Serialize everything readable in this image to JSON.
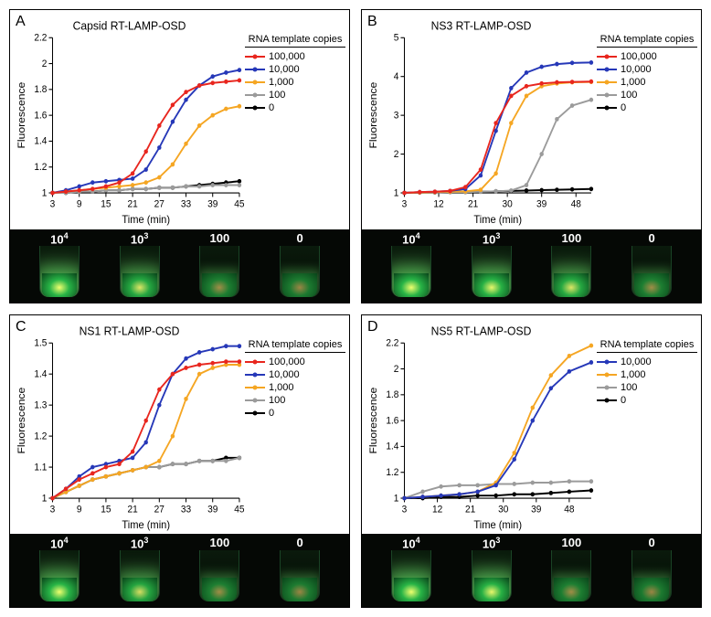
{
  "series_colors": {
    "100000": "#e8261e",
    "10000": "#2638b8",
    "1000": "#f5a623",
    "100": "#9b9b9b",
    "0": "#000000"
  },
  "legend_title": "RNA template copies",
  "legend_items": [
    {
      "key": "100000",
      "label": "100,000"
    },
    {
      "key": "10000",
      "label": "10,000"
    },
    {
      "key": "1000",
      "label": "1,000"
    },
    {
      "key": "100",
      "label": "100"
    },
    {
      "key": "0",
      "label": "0"
    }
  ],
  "tube_labels": [
    "10^4",
    "10^3",
    "100",
    "0"
  ],
  "panels": [
    {
      "letter": "A",
      "title": "Capsid RT-LAMP-OSD",
      "xlabel": "Time (min)",
      "ylabel": "Fluorescence",
      "xticks": [
        3,
        9,
        15,
        21,
        27,
        33,
        39,
        45
      ],
      "yticks": [
        1,
        1.2,
        1.4,
        1.6,
        1.8,
        2,
        2.2
      ],
      "xlim": [
        3,
        45
      ],
      "ylim": [
        1,
        2.2
      ],
      "series": {
        "100000": [
          [
            3,
            1.0
          ],
          [
            6,
            1.01
          ],
          [
            9,
            1.02
          ],
          [
            12,
            1.03
          ],
          [
            15,
            1.05
          ],
          [
            18,
            1.08
          ],
          [
            21,
            1.15
          ],
          [
            24,
            1.32
          ],
          [
            27,
            1.52
          ],
          [
            30,
            1.68
          ],
          [
            33,
            1.78
          ],
          [
            36,
            1.83
          ],
          [
            39,
            1.85
          ],
          [
            42,
            1.86
          ],
          [
            45,
            1.87
          ]
        ],
        "10000": [
          [
            3,
            1.0
          ],
          [
            6,
            1.02
          ],
          [
            9,
            1.05
          ],
          [
            12,
            1.08
          ],
          [
            15,
            1.09
          ],
          [
            18,
            1.1
          ],
          [
            21,
            1.11
          ],
          [
            24,
            1.18
          ],
          [
            27,
            1.35
          ],
          [
            30,
            1.55
          ],
          [
            33,
            1.72
          ],
          [
            36,
            1.83
          ],
          [
            39,
            1.9
          ],
          [
            42,
            1.93
          ],
          [
            45,
            1.95
          ]
        ],
        "1000": [
          [
            3,
            1.0
          ],
          [
            6,
            1.01
          ],
          [
            9,
            1.02
          ],
          [
            12,
            1.03
          ],
          [
            15,
            1.04
          ],
          [
            18,
            1.05
          ],
          [
            21,
            1.06
          ],
          [
            24,
            1.08
          ],
          [
            27,
            1.12
          ],
          [
            30,
            1.22
          ],
          [
            33,
            1.38
          ],
          [
            36,
            1.52
          ],
          [
            39,
            1.6
          ],
          [
            42,
            1.65
          ],
          [
            45,
            1.67
          ]
        ],
        "100": [
          [
            3,
            1.0
          ],
          [
            6,
            1.0
          ],
          [
            9,
            1.01
          ],
          [
            12,
            1.01
          ],
          [
            15,
            1.02
          ],
          [
            18,
            1.02
          ],
          [
            21,
            1.03
          ],
          [
            24,
            1.03
          ],
          [
            27,
            1.04
          ],
          [
            30,
            1.04
          ],
          [
            33,
            1.05
          ],
          [
            36,
            1.05
          ],
          [
            39,
            1.06
          ],
          [
            42,
            1.06
          ],
          [
            45,
            1.06
          ]
        ],
        "0": [
          [
            3,
            1.0
          ],
          [
            6,
            1.0
          ],
          [
            9,
            1.01
          ],
          [
            12,
            1.01
          ],
          [
            15,
            1.02
          ],
          [
            18,
            1.02
          ],
          [
            21,
            1.03
          ],
          [
            24,
            1.03
          ],
          [
            27,
            1.04
          ],
          [
            30,
            1.04
          ],
          [
            33,
            1.05
          ],
          [
            36,
            1.06
          ],
          [
            39,
            1.07
          ],
          [
            42,
            1.08
          ],
          [
            45,
            1.09
          ]
        ]
      },
      "tube_intensity": [
        1.0,
        0.85,
        0.35,
        0.3
      ]
    },
    {
      "letter": "B",
      "title": "NS3 RT-LAMP-OSD",
      "xlabel": "Time (min)",
      "ylabel": "Fluorescence",
      "xticks": [
        3,
        12,
        21,
        30,
        39,
        48
      ],
      "yticks": [
        1,
        2,
        3,
        4,
        5
      ],
      "xlim": [
        3,
        52
      ],
      "ylim": [
        1,
        5
      ],
      "series": {
        "100000": [
          [
            3,
            1.0
          ],
          [
            7,
            1.02
          ],
          [
            11,
            1.03
          ],
          [
            15,
            1.05
          ],
          [
            19,
            1.15
          ],
          [
            23,
            1.6
          ],
          [
            27,
            2.8
          ],
          [
            31,
            3.5
          ],
          [
            35,
            3.75
          ],
          [
            39,
            3.82
          ],
          [
            43,
            3.85
          ],
          [
            47,
            3.86
          ],
          [
            52,
            3.87
          ]
        ],
        "10000": [
          [
            3,
            1.0
          ],
          [
            7,
            1.02
          ],
          [
            11,
            1.03
          ],
          [
            15,
            1.05
          ],
          [
            19,
            1.1
          ],
          [
            23,
            1.45
          ],
          [
            27,
            2.6
          ],
          [
            31,
            3.7
          ],
          [
            35,
            4.1
          ],
          [
            39,
            4.25
          ],
          [
            43,
            4.32
          ],
          [
            47,
            4.35
          ],
          [
            52,
            4.36
          ]
        ],
        "1000": [
          [
            3,
            1.0
          ],
          [
            7,
            1.01
          ],
          [
            11,
            1.02
          ],
          [
            15,
            1.03
          ],
          [
            19,
            1.04
          ],
          [
            23,
            1.08
          ],
          [
            27,
            1.5
          ],
          [
            31,
            2.8
          ],
          [
            35,
            3.5
          ],
          [
            39,
            3.75
          ],
          [
            43,
            3.82
          ],
          [
            47,
            3.85
          ],
          [
            52,
            3.86
          ]
        ],
        "100": [
          [
            3,
            1.0
          ],
          [
            7,
            1.01
          ],
          [
            11,
            1.01
          ],
          [
            15,
            1.02
          ],
          [
            19,
            1.02
          ],
          [
            23,
            1.03
          ],
          [
            27,
            1.04
          ],
          [
            31,
            1.06
          ],
          [
            35,
            1.2
          ],
          [
            39,
            2.0
          ],
          [
            43,
            2.9
          ],
          [
            47,
            3.25
          ],
          [
            52,
            3.4
          ]
        ],
        "0": [
          [
            3,
            1.0
          ],
          [
            7,
            1.01
          ],
          [
            11,
            1.01
          ],
          [
            15,
            1.02
          ],
          [
            19,
            1.02
          ],
          [
            23,
            1.03
          ],
          [
            27,
            1.04
          ],
          [
            31,
            1.05
          ],
          [
            35,
            1.06
          ],
          [
            39,
            1.07
          ],
          [
            43,
            1.08
          ],
          [
            47,
            1.09
          ],
          [
            52,
            1.1
          ]
        ]
      },
      "tube_intensity": [
        1.0,
        0.95,
        0.85,
        0.35
      ]
    },
    {
      "letter": "C",
      "title": "NS1 RT-LAMP-OSD",
      "xlabel": "Time (min)",
      "ylabel": "Fluorescence",
      "xticks": [
        3,
        9,
        15,
        21,
        27,
        33,
        39,
        45
      ],
      "yticks": [
        1,
        1.1,
        1.2,
        1.3,
        1.4,
        1.5
      ],
      "xlim": [
        3,
        45
      ],
      "ylim": [
        1,
        1.5
      ],
      "series": {
        "100000": [
          [
            3,
            1.0
          ],
          [
            6,
            1.03
          ],
          [
            9,
            1.06
          ],
          [
            12,
            1.08
          ],
          [
            15,
            1.1
          ],
          [
            18,
            1.11
          ],
          [
            21,
            1.15
          ],
          [
            24,
            1.25
          ],
          [
            27,
            1.35
          ],
          [
            30,
            1.4
          ],
          [
            33,
            1.42
          ],
          [
            36,
            1.43
          ],
          [
            39,
            1.435
          ],
          [
            42,
            1.44
          ],
          [
            45,
            1.44
          ]
        ],
        "10000": [
          [
            3,
            1.0
          ],
          [
            6,
            1.03
          ],
          [
            9,
            1.07
          ],
          [
            12,
            1.1
          ],
          [
            15,
            1.11
          ],
          [
            18,
            1.12
          ],
          [
            21,
            1.13
          ],
          [
            24,
            1.18
          ],
          [
            27,
            1.3
          ],
          [
            30,
            1.4
          ],
          [
            33,
            1.45
          ],
          [
            36,
            1.47
          ],
          [
            39,
            1.48
          ],
          [
            42,
            1.49
          ],
          [
            45,
            1.49
          ]
        ],
        "1000": [
          [
            3,
            1.0
          ],
          [
            6,
            1.02
          ],
          [
            9,
            1.04
          ],
          [
            12,
            1.06
          ],
          [
            15,
            1.07
          ],
          [
            18,
            1.08
          ],
          [
            21,
            1.09
          ],
          [
            24,
            1.1
          ],
          [
            27,
            1.12
          ],
          [
            30,
            1.2
          ],
          [
            33,
            1.32
          ],
          [
            36,
            1.4
          ],
          [
            39,
            1.42
          ],
          [
            42,
            1.43
          ],
          [
            45,
            1.43
          ]
        ],
        "100": [
          [
            3,
            1.0
          ],
          [
            6,
            1.02
          ],
          [
            9,
            1.04
          ],
          [
            12,
            1.06
          ],
          [
            15,
            1.07
          ],
          [
            18,
            1.08
          ],
          [
            21,
            1.09
          ],
          [
            24,
            1.1
          ],
          [
            27,
            1.1
          ],
          [
            30,
            1.11
          ],
          [
            33,
            1.11
          ],
          [
            36,
            1.12
          ],
          [
            39,
            1.12
          ],
          [
            42,
            1.12
          ],
          [
            45,
            1.13
          ]
        ],
        "0": [
          [
            3,
            1.0
          ],
          [
            6,
            1.02
          ],
          [
            9,
            1.04
          ],
          [
            12,
            1.06
          ],
          [
            15,
            1.07
          ],
          [
            18,
            1.08
          ],
          [
            21,
            1.09
          ],
          [
            24,
            1.1
          ],
          [
            27,
            1.1
          ],
          [
            30,
            1.11
          ],
          [
            33,
            1.11
          ],
          [
            36,
            1.12
          ],
          [
            39,
            1.12
          ],
          [
            42,
            1.13
          ],
          [
            45,
            1.13
          ]
        ]
      },
      "tube_intensity": [
        1.0,
        0.8,
        0.35,
        0.3
      ]
    },
    {
      "letter": "D",
      "title": "NS5 RT-LAMP-OSD",
      "xlabel": "Time (min)",
      "ylabel": "Fluorescence",
      "xticks": [
        3,
        12,
        21,
        30,
        39,
        48
      ],
      "yticks": [
        1,
        1.2,
        1.4,
        1.6,
        1.8,
        2,
        2.2
      ],
      "xlim": [
        3,
        54
      ],
      "ylim": [
        1,
        2.2
      ],
      "series": {
        "10000": [
          [
            3,
            1.0
          ],
          [
            8,
            1.01
          ],
          [
            13,
            1.02
          ],
          [
            18,
            1.03
          ],
          [
            23,
            1.05
          ],
          [
            28,
            1.1
          ],
          [
            33,
            1.3
          ],
          [
            38,
            1.6
          ],
          [
            43,
            1.85
          ],
          [
            48,
            1.98
          ],
          [
            54,
            2.05
          ]
        ],
        "1000": [
          [
            3,
            1.0
          ],
          [
            8,
            1.01
          ],
          [
            13,
            1.02
          ],
          [
            18,
            1.03
          ],
          [
            23,
            1.05
          ],
          [
            28,
            1.12
          ],
          [
            33,
            1.35
          ],
          [
            38,
            1.7
          ],
          [
            43,
            1.95
          ],
          [
            48,
            2.1
          ],
          [
            54,
            2.18
          ]
        ],
        "100": [
          [
            3,
            1.0
          ],
          [
            8,
            1.05
          ],
          [
            13,
            1.09
          ],
          [
            18,
            1.1
          ],
          [
            23,
            1.1
          ],
          [
            28,
            1.11
          ],
          [
            33,
            1.11
          ],
          [
            38,
            1.12
          ],
          [
            43,
            1.12
          ],
          [
            48,
            1.13
          ],
          [
            54,
            1.13
          ]
        ],
        "0": [
          [
            3,
            1.0
          ],
          [
            8,
            1.0
          ],
          [
            13,
            1.01
          ],
          [
            18,
            1.01
          ],
          [
            23,
            1.02
          ],
          [
            28,
            1.02
          ],
          [
            33,
            1.03
          ],
          [
            38,
            1.03
          ],
          [
            43,
            1.04
          ],
          [
            48,
            1.05
          ],
          [
            54,
            1.06
          ]
        ]
      },
      "tube_intensity": [
        1.0,
        0.95,
        0.35,
        0.3
      ]
    }
  ]
}
